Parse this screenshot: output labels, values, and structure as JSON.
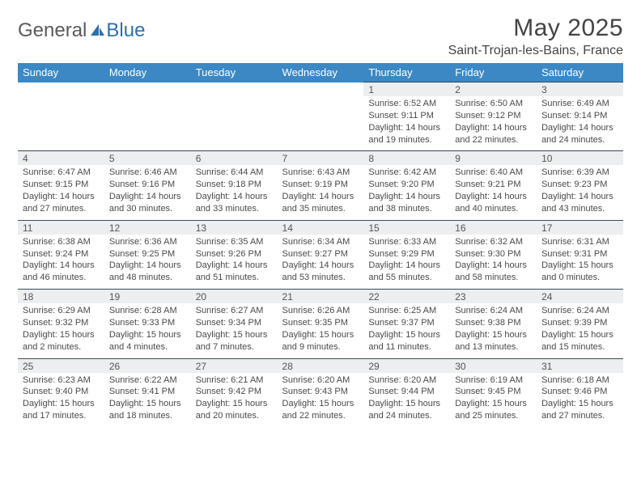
{
  "brand": {
    "first": "General",
    "second": "Blue"
  },
  "title": "May 2025",
  "location": "Saint-Trojan-les-Bains, France",
  "colors": {
    "header_bg": "#3b88c4",
    "header_fg": "#ffffff",
    "daynum_bg": "#eceeef",
    "row_border": "#3a4a5a",
    "body_text": "#4a4a4a",
    "logo_gray": "#5a5a5a",
    "logo_blue": "#2f6fa8"
  },
  "weekdays": [
    "Sunday",
    "Monday",
    "Tuesday",
    "Wednesday",
    "Thursday",
    "Friday",
    "Saturday"
  ],
  "weeks": [
    {
      "nums": [
        "",
        "",
        "",
        "",
        "1",
        "2",
        "3"
      ],
      "cells": [
        null,
        null,
        null,
        null,
        {
          "sunrise": "6:52 AM",
          "sunset": "9:11 PM",
          "daylight": "14 hours and 19 minutes."
        },
        {
          "sunrise": "6:50 AM",
          "sunset": "9:12 PM",
          "daylight": "14 hours and 22 minutes."
        },
        {
          "sunrise": "6:49 AM",
          "sunset": "9:14 PM",
          "daylight": "14 hours and 24 minutes."
        }
      ]
    },
    {
      "nums": [
        "4",
        "5",
        "6",
        "7",
        "8",
        "9",
        "10"
      ],
      "cells": [
        {
          "sunrise": "6:47 AM",
          "sunset": "9:15 PM",
          "daylight": "14 hours and 27 minutes."
        },
        {
          "sunrise": "6:46 AM",
          "sunset": "9:16 PM",
          "daylight": "14 hours and 30 minutes."
        },
        {
          "sunrise": "6:44 AM",
          "sunset": "9:18 PM",
          "daylight": "14 hours and 33 minutes."
        },
        {
          "sunrise": "6:43 AM",
          "sunset": "9:19 PM",
          "daylight": "14 hours and 35 minutes."
        },
        {
          "sunrise": "6:42 AM",
          "sunset": "9:20 PM",
          "daylight": "14 hours and 38 minutes."
        },
        {
          "sunrise": "6:40 AM",
          "sunset": "9:21 PM",
          "daylight": "14 hours and 40 minutes."
        },
        {
          "sunrise": "6:39 AM",
          "sunset": "9:23 PM",
          "daylight": "14 hours and 43 minutes."
        }
      ]
    },
    {
      "nums": [
        "11",
        "12",
        "13",
        "14",
        "15",
        "16",
        "17"
      ],
      "cells": [
        {
          "sunrise": "6:38 AM",
          "sunset": "9:24 PM",
          "daylight": "14 hours and 46 minutes."
        },
        {
          "sunrise": "6:36 AM",
          "sunset": "9:25 PM",
          "daylight": "14 hours and 48 minutes."
        },
        {
          "sunrise": "6:35 AM",
          "sunset": "9:26 PM",
          "daylight": "14 hours and 51 minutes."
        },
        {
          "sunrise": "6:34 AM",
          "sunset": "9:27 PM",
          "daylight": "14 hours and 53 minutes."
        },
        {
          "sunrise": "6:33 AM",
          "sunset": "9:29 PM",
          "daylight": "14 hours and 55 minutes."
        },
        {
          "sunrise": "6:32 AM",
          "sunset": "9:30 PM",
          "daylight": "14 hours and 58 minutes."
        },
        {
          "sunrise": "6:31 AM",
          "sunset": "9:31 PM",
          "daylight": "15 hours and 0 minutes."
        }
      ]
    },
    {
      "nums": [
        "18",
        "19",
        "20",
        "21",
        "22",
        "23",
        "24"
      ],
      "cells": [
        {
          "sunrise": "6:29 AM",
          "sunset": "9:32 PM",
          "daylight": "15 hours and 2 minutes."
        },
        {
          "sunrise": "6:28 AM",
          "sunset": "9:33 PM",
          "daylight": "15 hours and 4 minutes."
        },
        {
          "sunrise": "6:27 AM",
          "sunset": "9:34 PM",
          "daylight": "15 hours and 7 minutes."
        },
        {
          "sunrise": "6:26 AM",
          "sunset": "9:35 PM",
          "daylight": "15 hours and 9 minutes."
        },
        {
          "sunrise": "6:25 AM",
          "sunset": "9:37 PM",
          "daylight": "15 hours and 11 minutes."
        },
        {
          "sunrise": "6:24 AM",
          "sunset": "9:38 PM",
          "daylight": "15 hours and 13 minutes."
        },
        {
          "sunrise": "6:24 AM",
          "sunset": "9:39 PM",
          "daylight": "15 hours and 15 minutes."
        }
      ]
    },
    {
      "nums": [
        "25",
        "26",
        "27",
        "28",
        "29",
        "30",
        "31"
      ],
      "cells": [
        {
          "sunrise": "6:23 AM",
          "sunset": "9:40 PM",
          "daylight": "15 hours and 17 minutes."
        },
        {
          "sunrise": "6:22 AM",
          "sunset": "9:41 PM",
          "daylight": "15 hours and 18 minutes."
        },
        {
          "sunrise": "6:21 AM",
          "sunset": "9:42 PM",
          "daylight": "15 hours and 20 minutes."
        },
        {
          "sunrise": "6:20 AM",
          "sunset": "9:43 PM",
          "daylight": "15 hours and 22 minutes."
        },
        {
          "sunrise": "6:20 AM",
          "sunset": "9:44 PM",
          "daylight": "15 hours and 24 minutes."
        },
        {
          "sunrise": "6:19 AM",
          "sunset": "9:45 PM",
          "daylight": "15 hours and 25 minutes."
        },
        {
          "sunrise": "6:18 AM",
          "sunset": "9:46 PM",
          "daylight": "15 hours and 27 minutes."
        }
      ]
    }
  ],
  "labels": {
    "sunrise": "Sunrise:",
    "sunset": "Sunset:",
    "daylight": "Daylight:"
  }
}
